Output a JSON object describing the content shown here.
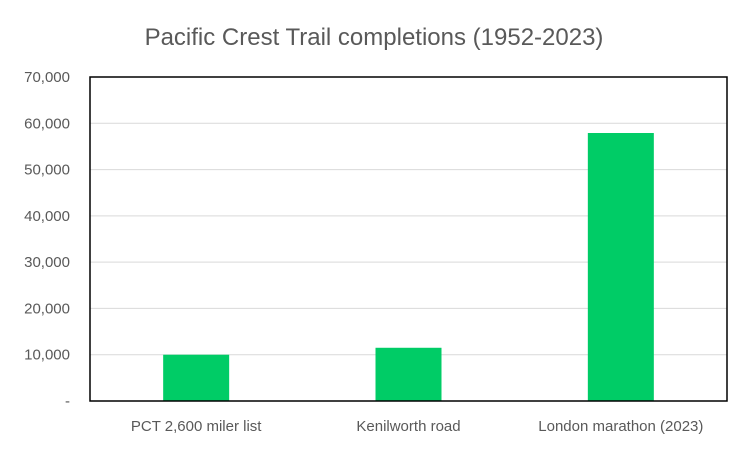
{
  "chart_data": {
    "type": "bar",
    "title": "Pacific Crest Trail completions (1952-2023)",
    "categories": [
      "PCT 2,600 miler list",
      "Kenilworth road",
      "London marathon (2023)"
    ],
    "values": [
      10000,
      11500,
      57900
    ],
    "ylim": [
      0,
      70000
    ],
    "yticks": [
      0,
      10000,
      20000,
      30000,
      40000,
      50000,
      60000,
      70000
    ],
    "ytick_labels": [
      "-",
      "10,000",
      "20,000",
      "30,000",
      "40,000",
      "50,000",
      "60,000",
      "70,000"
    ],
    "xlabel": "",
    "ylabel": "",
    "grid": true,
    "bar_color": "#00CC66",
    "grid_color": "#D9D9D9",
    "axis_color": "#000000"
  }
}
